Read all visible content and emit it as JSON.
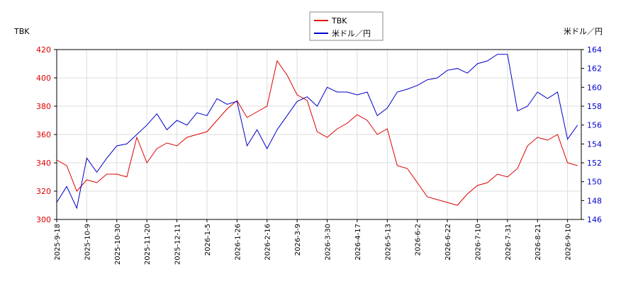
{
  "chart_data": {
    "type": "line",
    "y_label": "TBK",
    "y2_label": "米ドル／円",
    "categories": [
      "2025-9-18",
      null,
      null,
      "2025-10-9",
      null,
      null,
      "2025-10-30",
      null,
      null,
      "2025-11-20",
      null,
      null,
      "2025-12-11",
      null,
      null,
      "2026-1-5",
      null,
      null,
      "2026-1-26",
      null,
      null,
      "2026-2-16",
      null,
      null,
      "2026-3-9",
      null,
      null,
      "2026-3-30",
      null,
      null,
      "2026-4-17",
      null,
      null,
      "2026-5-13",
      null,
      null,
      "2026-6-2",
      null,
      null,
      "2026-6-22",
      null,
      null,
      "2026-7-10",
      null,
      null,
      "2026-7-31",
      null,
      null,
      "2026-8-21",
      null,
      null,
      "2026-9-10",
      null
    ],
    "series": [
      {
        "name": "TBK",
        "color": "#dd0000",
        "axis": "y",
        "values": [
          342,
          338,
          320,
          328,
          326,
          332,
          332,
          330,
          358,
          340,
          350,
          354,
          352,
          358,
          360,
          362,
          370,
          378,
          384,
          372,
          376,
          380,
          412,
          402,
          388,
          384,
          362,
          358,
          364,
          368,
          374,
          370,
          360,
          364,
          338,
          336,
          326,
          316,
          314,
          312,
          310,
          318,
          324,
          326,
          332,
          330,
          336,
          352,
          358,
          356,
          360,
          340,
          338
        ]
      },
      {
        "name": "米ドル／円",
        "color": "#0000cc",
        "axis": "y2",
        "values": [
          147.8,
          149.5,
          147.2,
          152.5,
          151.0,
          152.5,
          153.8,
          154.0,
          155.0,
          156.0,
          157.2,
          155.5,
          156.5,
          156.0,
          157.3,
          157.0,
          158.8,
          158.2,
          158.5,
          153.8,
          155.5,
          153.5,
          155.5,
          157.0,
          158.5,
          159.0,
          158.0,
          160.0,
          159.5,
          159.5,
          159.2,
          159.5,
          157.0,
          157.8,
          159.5,
          159.8,
          160.2,
          160.8,
          161.0,
          161.8,
          162.0,
          161.5,
          162.5,
          162.8,
          163.5,
          163.5,
          157.5,
          158.0,
          159.5,
          158.8,
          159.5,
          154.5,
          156.0
        ]
      }
    ],
    "ylim": [
      300,
      420
    ],
    "yticks": [
      300,
      320,
      340,
      360,
      380,
      400,
      420
    ],
    "y2lim": [
      146,
      164
    ],
    "y2ticks": [
      146,
      148,
      150,
      152,
      154,
      156,
      158,
      160,
      162,
      164
    ],
    "grid": true
  }
}
